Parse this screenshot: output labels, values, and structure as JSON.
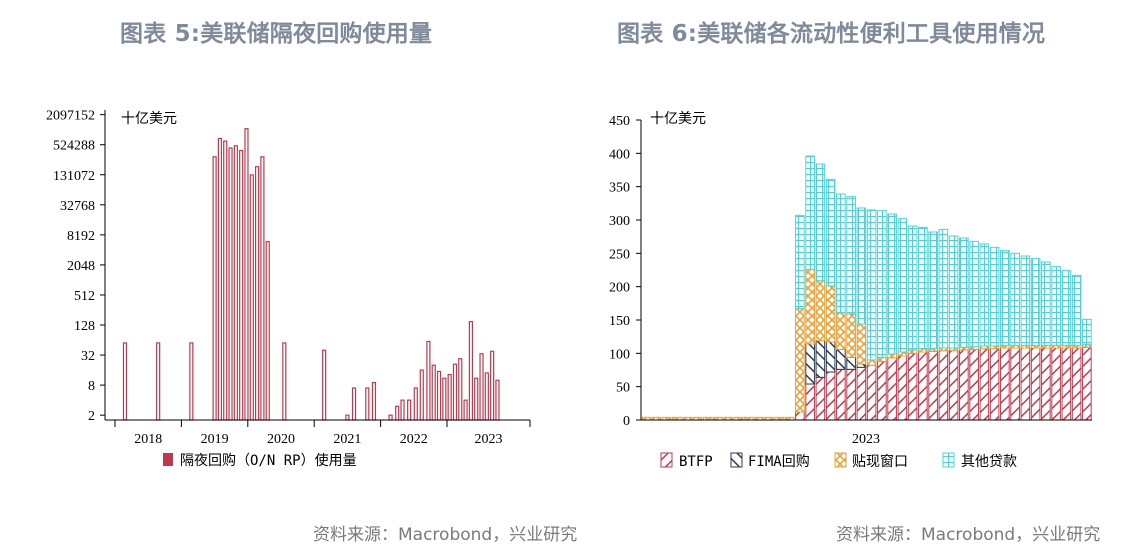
{
  "chart_data": [
    {
      "type": "bar",
      "title": "图表 5:美联储隔夜回购使用量",
      "unit_label": "十亿美元",
      "y_scale": "log2",
      "ylim": [
        1.6,
        2600000
      ],
      "y_ticks": [
        "2",
        "8",
        "32",
        "128",
        "512",
        "2048",
        "8192",
        "32768",
        "131072",
        "524288",
        "2097152"
      ],
      "y_tick_values": [
        2,
        8,
        32,
        128,
        512,
        2048,
        8192,
        32768,
        131072,
        524288,
        2097152
      ],
      "x_labels": [
        "2018",
        "2019",
        "2020",
        "2021",
        "2022",
        "2023"
      ],
      "x_range": [
        2017.7,
        2023.95
      ],
      "x_tick_positions": [
        2017.7,
        2018.7,
        2019.7,
        2020.7,
        2021.7,
        2022.7,
        2023.95
      ],
      "bar_color": "#c0394b",
      "bar_fill": "#ffffff",
      "series": [
        {
          "name": "隔夜回购（O/N RP）使用量",
          "points": [
            {
              "x": 2017.85,
              "y": 56
            },
            {
              "x": 2018.35,
              "y": 56
            },
            {
              "x": 2018.85,
              "y": 56
            },
            {
              "x": 2019.2,
              "y": 300000
            },
            {
              "x": 2019.28,
              "y": 700000
            },
            {
              "x": 2019.36,
              "y": 620000
            },
            {
              "x": 2019.44,
              "y": 450000
            },
            {
              "x": 2019.52,
              "y": 500000
            },
            {
              "x": 2019.6,
              "y": 400000
            },
            {
              "x": 2019.68,
              "y": 1100000
            },
            {
              "x": 2019.76,
              "y": 130000
            },
            {
              "x": 2019.84,
              "y": 190000
            },
            {
              "x": 2019.92,
              "y": 300000
            },
            {
              "x": 2020.0,
              "y": 6000
            },
            {
              "x": 2020.25,
              "y": 56
            },
            {
              "x": 2020.85,
              "y": 40
            },
            {
              "x": 2021.2,
              "y": 2
            },
            {
              "x": 2021.3,
              "y": 7
            },
            {
              "x": 2021.5,
              "y": 7
            },
            {
              "x": 2021.6,
              "y": 9
            },
            {
              "x": 2021.85,
              "y": 2
            },
            {
              "x": 2021.95,
              "y": 3
            },
            {
              "x": 2022.03,
              "y": 4
            },
            {
              "x": 2022.13,
              "y": 4
            },
            {
              "x": 2022.23,
              "y": 7
            },
            {
              "x": 2022.32,
              "y": 16
            },
            {
              "x": 2022.42,
              "y": 60
            },
            {
              "x": 2022.5,
              "y": 20
            },
            {
              "x": 2022.58,
              "y": 15
            },
            {
              "x": 2022.66,
              "y": 11
            },
            {
              "x": 2022.74,
              "y": 13
            },
            {
              "x": 2022.82,
              "y": 21
            },
            {
              "x": 2022.9,
              "y": 27
            },
            {
              "x": 2022.98,
              "y": 4
            },
            {
              "x": 2023.06,
              "y": 150
            },
            {
              "x": 2023.14,
              "y": 11
            },
            {
              "x": 2023.22,
              "y": 34
            },
            {
              "x": 2023.3,
              "y": 14
            },
            {
              "x": 2023.38,
              "y": 38
            },
            {
              "x": 2023.46,
              "y": 10
            }
          ]
        }
      ],
      "legend": [
        "隔夜回购（O/N RP）使用量"
      ]
    },
    {
      "type": "bar",
      "stacked": true,
      "title": "图表 6:美联储各流动性便利工具使用情况",
      "unit_label": "十亿美元",
      "ylim": [
        0,
        450
      ],
      "y_ticks": [
        "0",
        "50",
        "100",
        "150",
        "200",
        "250",
        "300",
        "350",
        "400",
        "450"
      ],
      "y_tick_values": [
        0,
        50,
        100,
        150,
        200,
        250,
        300,
        350,
        400,
        450
      ],
      "x_label": "2023",
      "categories_count": 44,
      "series": [
        {
          "name": "BTFP",
          "color": "#c0394b",
          "values": [
            0,
            0,
            0,
            0,
            0,
            0,
            0,
            0,
            0,
            0,
            0,
            0,
            0,
            0,
            0,
            12,
            54,
            64,
            72,
            76,
            76,
            79,
            82,
            88,
            93,
            96,
            100,
            102,
            103,
            104,
            104,
            105,
            106,
            107,
            107,
            108,
            108,
            108,
            108,
            108,
            108,
            108,
            108,
            109
          ]
        },
        {
          "name": "FIMA回购",
          "color": "#2b3a55",
          "values": [
            0,
            0,
            0,
            0,
            0,
            0,
            0,
            0,
            0,
            0,
            0,
            0,
            0,
            0,
            0,
            0,
            60,
            55,
            45,
            30,
            18,
            5,
            0,
            0,
            0,
            0,
            0,
            0,
            0,
            0,
            0,
            0,
            0,
            0,
            0,
            0,
            0,
            0,
            0,
            0,
            0,
            0,
            0,
            0
          ]
        },
        {
          "name": "贴现窗口",
          "color": "#e8a13a",
          "values": [
            4,
            4,
            4,
            4,
            4,
            4,
            4,
            4,
            4,
            4,
            4,
            4,
            4,
            4,
            4,
            155,
            112,
            90,
            84,
            55,
            65,
            60,
            8,
            6,
            6,
            6,
            5,
            5,
            4,
            4,
            4,
            4,
            4,
            4,
            4,
            4,
            4,
            4,
            4,
            4,
            4,
            4,
            4,
            4
          ]
        },
        {
          "name": "其他贷款",
          "color": "#4fd1d9",
          "values": [
            0,
            0,
            0,
            0,
            0,
            0,
            0,
            0,
            0,
            0,
            0,
            0,
            0,
            0,
            0,
            140,
            170,
            175,
            160,
            178,
            176,
            174,
            225,
            220,
            210,
            200,
            186,
            182,
            175,
            178,
            168,
            164,
            158,
            153,
            148,
            142,
            138,
            134,
            130,
            125,
            118,
            112,
            105,
            38
          ]
        }
      ],
      "legend": [
        "BTFP",
        "FIMA回购",
        "贴现窗口",
        "其他贷款"
      ]
    }
  ],
  "sources": [
    "资料来源：Macrobond，兴业研究",
    "资料来源：Macrobond，兴业研究"
  ]
}
